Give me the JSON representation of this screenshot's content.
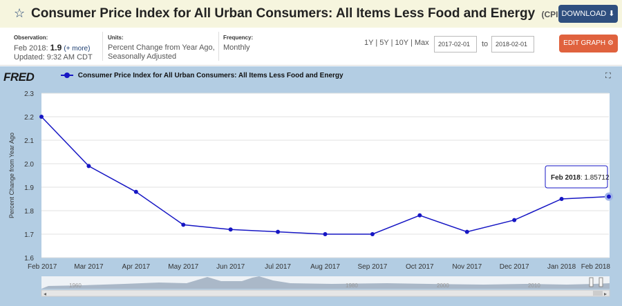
{
  "header": {
    "title": "Consumer Price Index for All Urban Consumers: All Items Less Food and Energy",
    "series_id": "(CPILFESL)",
    "download_label": "DOWNLOAD ⬇"
  },
  "meta": {
    "observation_label": "Observation:",
    "observation_date": "Feb 2018:",
    "observation_value": "1.9",
    "observation_more": "(+ more)",
    "updated": "Updated: 9:32 AM CDT",
    "units_label": "Units:",
    "units_line1": "Percent Change from Year Ago,",
    "units_line2": "Seasonally Adjusted",
    "frequency_label": "Frequency:",
    "frequency_value": "Monthly"
  },
  "controls": {
    "range_1y": "1Y",
    "range_5y": "5Y",
    "range_10y": "10Y",
    "range_max": "Max",
    "separator": "|",
    "start_date": "2017-02-01",
    "end_date": "2018-02-01",
    "to_label": "to",
    "edit_label": "EDIT GRAPH ⚙"
  },
  "logo": "FRED",
  "legend_label": "Consumer Price Index for All Urban Consumers: All Items Less Food and Energy",
  "expand_icon": "expand-icon",
  "colors": {
    "series": "#1616c4",
    "accent": "#e0623e",
    "download": "#2f4f7f"
  },
  "tooltip": {
    "label": "Feb 2018",
    "value": "1.85712"
  },
  "navigator": {
    "labels": [
      "1960",
      "1980",
      "2000",
      "2010"
    ]
  },
  "chart_data": {
    "type": "line",
    "title": "",
    "xlabel": "",
    "ylabel": "Percent Change from Year Ago",
    "ylim": [
      1.6,
      2.3
    ],
    "yticks": [
      "2.3",
      "2.2",
      "2.1",
      "2.0",
      "1.9",
      "1.8",
      "1.7",
      "1.6"
    ],
    "categories": [
      "Feb 2017",
      "Mar 2017",
      "Apr 2017",
      "May 2017",
      "Jun 2017",
      "Jul 2017",
      "Aug 2017",
      "Sep 2017",
      "Oct 2017",
      "Nov 2017",
      "Dec 2017",
      "Jan 2018",
      "Feb 2018"
    ],
    "series": [
      {
        "name": "Consumer Price Index for All Urban Consumers: All Items Less Food and Energy",
        "values": [
          2.2,
          1.99,
          1.88,
          1.74,
          1.72,
          1.71,
          1.7,
          1.7,
          1.78,
          1.71,
          1.76,
          1.85,
          1.86
        ]
      }
    ]
  }
}
